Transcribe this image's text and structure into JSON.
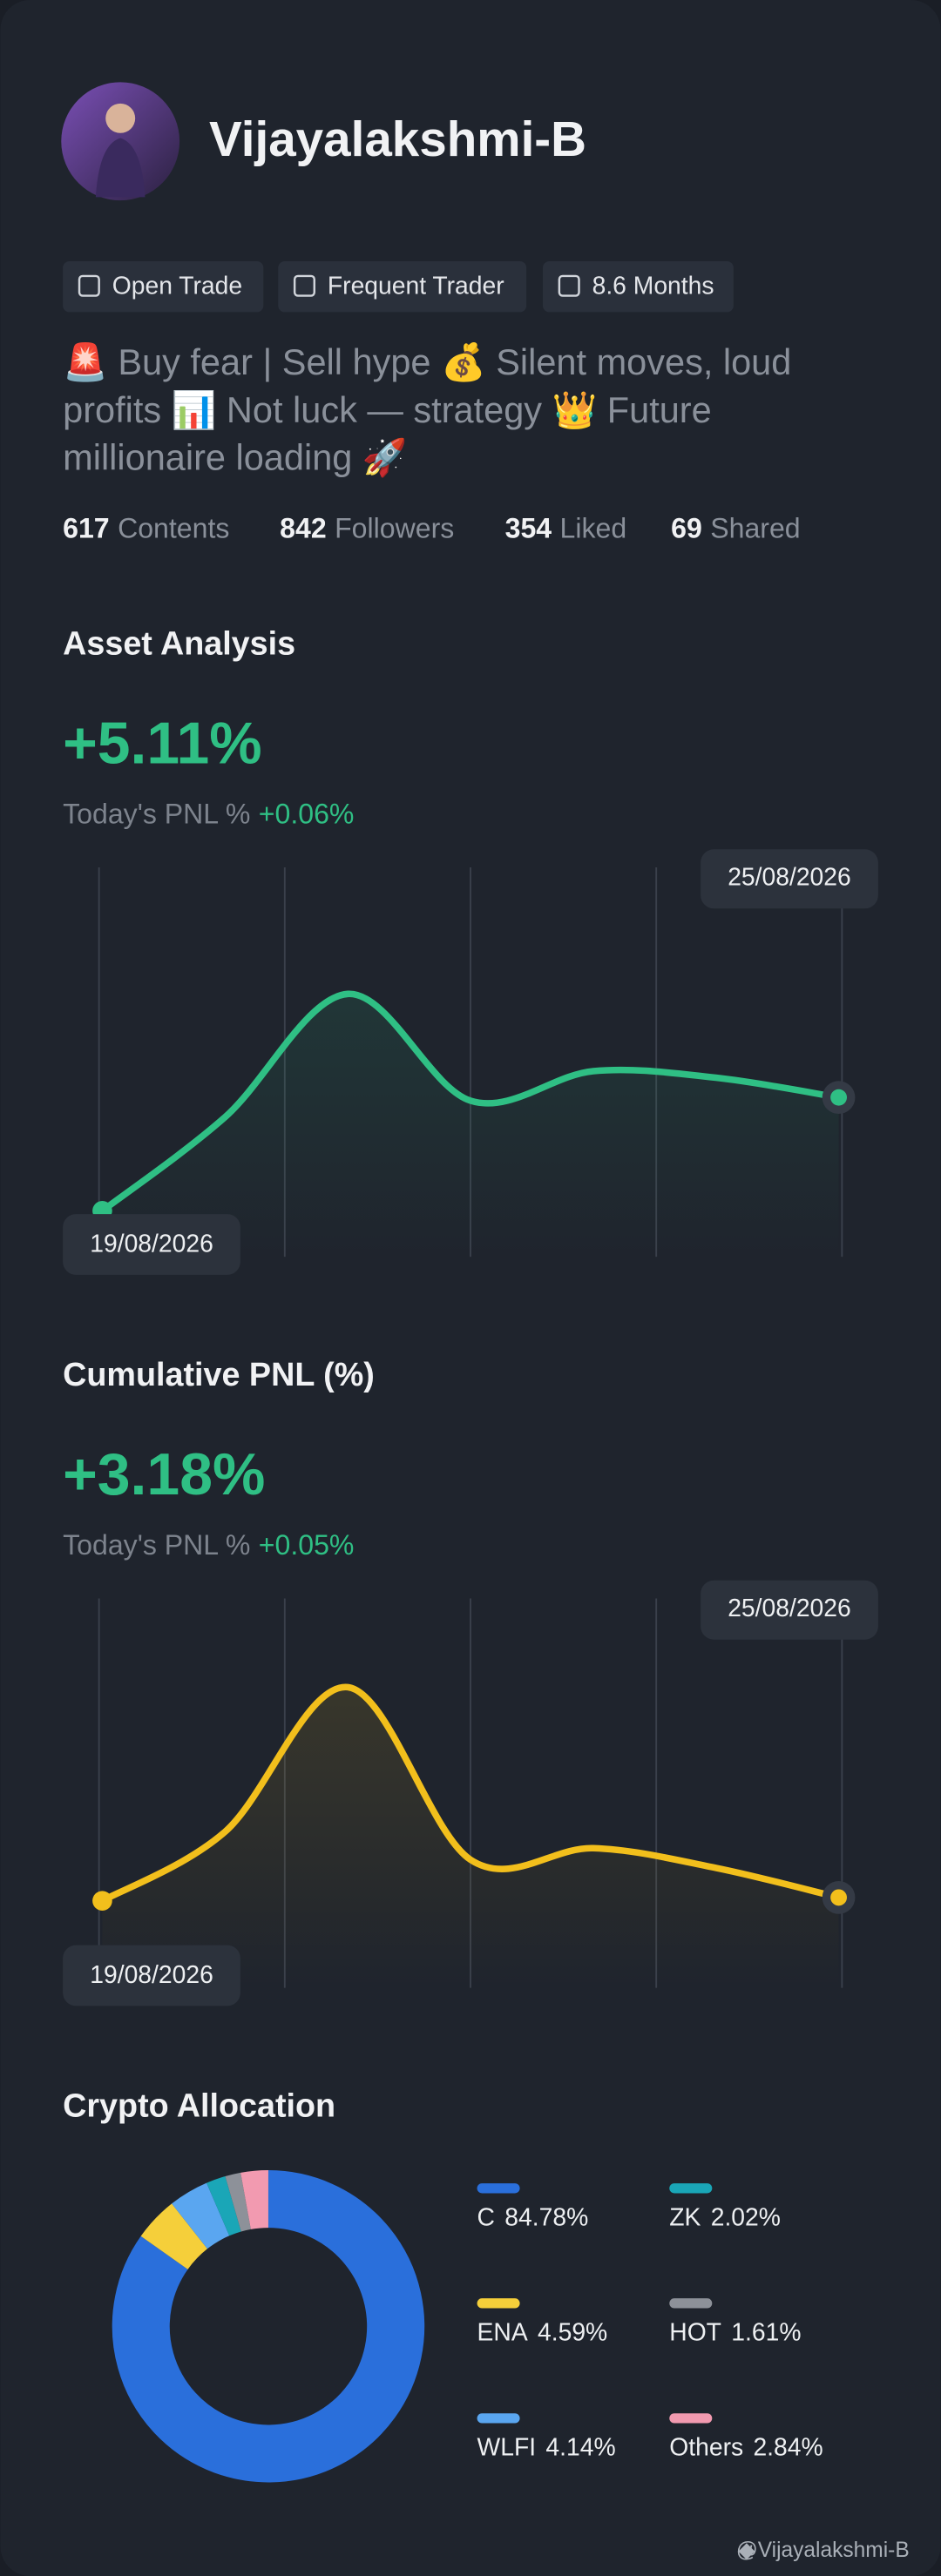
{
  "profile": {
    "name": "Vijayalakshmi-B",
    "tags": [
      "Open Trade",
      "Frequent Trader",
      "8.6 Months"
    ],
    "bio": "🚨 Buy fear | Sell hype 💰 Silent moves, loud profits 📊 Not luck — strategy 👑 Future millionaire loading 🚀",
    "stats": [
      {
        "value": 617,
        "label": "Contents"
      },
      {
        "value": 842,
        "label": "Followers"
      },
      {
        "value": 354,
        "label": "Liked"
      },
      {
        "value": 69,
        "label": "Shared"
      }
    ]
  },
  "chart_data": [
    {
      "type": "line",
      "title": "Asset Analysis",
      "headline": "+5.11%",
      "pnl_label": "Today's PNL %",
      "pnl_value": "+0.06%",
      "categories": [
        "19/08/2026",
        null,
        null,
        null,
        null,
        null,
        "25/08/2026"
      ],
      "series": [
        {
          "color": "#2fbf84",
          "values": [
            0,
            57,
            132,
            67,
            85,
            81,
            69
          ]
        }
      ],
      "ylim": [
        -28,
        182
      ]
    },
    {
      "type": "line",
      "title": "Cumulative PNL (%)",
      "headline": "+3.18%",
      "pnl_label": "Today's PNL %",
      "pnl_value": "+0.05%",
      "categories": [
        "19/08/2026",
        null,
        null,
        null,
        null,
        null,
        "25/08/2026"
      ],
      "series": [
        {
          "color": "#f2bf1c",
          "values": [
            0,
            42,
            130,
            25,
            32,
            20,
            2
          ]
        }
      ],
      "ylim": [
        -53,
        157
      ]
    },
    {
      "type": "pie",
      "title": "Crypto Allocation",
      "categories": [
        "C",
        "ENA",
        "WLFI",
        "ZK",
        "HOT",
        "Others"
      ],
      "values": [
        84.78,
        4.59,
        4.14,
        2.02,
        1.61,
        2.84
      ],
      "value_labels": [
        "84.78%",
        "4.59%",
        "4.14%",
        "2.02%",
        "1.61%",
        "2.84%"
      ],
      "colors": [
        "#2a6fdb",
        "#f5cf3a",
        "#5aa6f0",
        "#1aa6b7",
        "#8d9199",
        "#f29ab0"
      ]
    }
  ],
  "footer": "@Vijayalakshmi-B"
}
